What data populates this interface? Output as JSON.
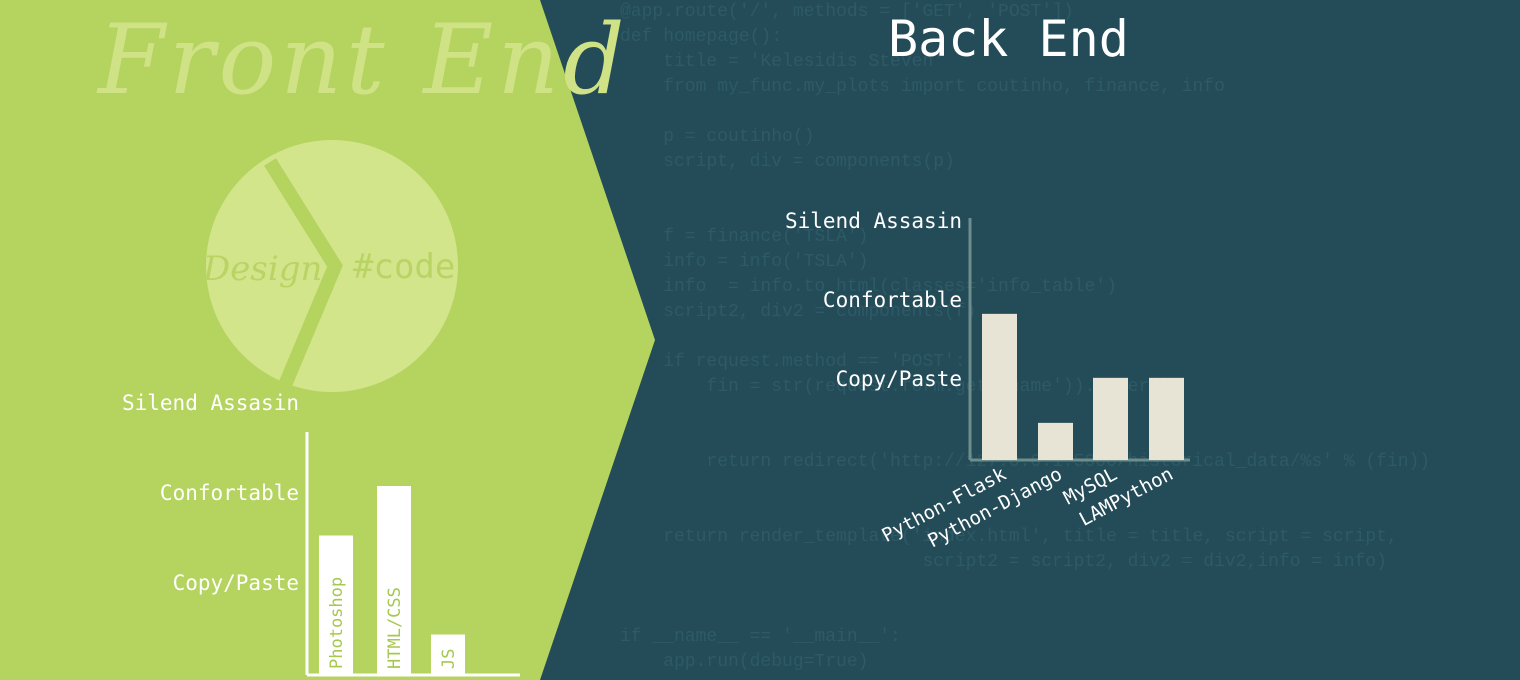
{
  "front_title": "Front End",
  "back_title": "Back End",
  "circle": {
    "left_label": "Design",
    "right_label": "#code"
  },
  "code_lines": [
    "@app.route('/', methods = ['GET', 'POST'])",
    "def homepage():",
    "    title = 'Kelesidis Steven'",
    "    from my_func.my_plots import coutinho, finance, info",
    "",
    "    p = coutinho()",
    "    script, div = components(p)",
    "",
    "",
    "    f = finance('TSLA')",
    "    info = info('TSLA')",
    "    info  = info.to_html(classes='info_table')",
    "    script2, div2 = components(f)",
    "",
    "    if request.method == 'POST':",
    "        fin = str(request.form.get('name')).upper()",
    "",
    "",
    "        return redirect('http://127.0.0.1:5000/historical_data/%s' % (fin))",
    "",
    "",
    "    return render_template('index.html', title = title, script = script,",
    "                            script2 = script2, div2 = div2,info = info)",
    "",
    "",
    "if __name__ == '__main__':",
    "    app.run(debug=True)"
  ],
  "colors": {
    "front_bg": "#b5d35f",
    "back_bg": "#244b58",
    "front_bar": "#ffffff",
    "front_bar_text": "#a6c84f",
    "back_bar": "#e7e4d6",
    "circle": "#d4e78c",
    "circle_text": "#b9d465",
    "axis_back": "#6e8e8c"
  },
  "chart_data": [
    {
      "type": "bar",
      "name": "front_end",
      "categories": [
        "Photoshop",
        "HTML/CSS",
        "JS"
      ],
      "values": [
        1.55,
        2.1,
        0.45
      ],
      "ytick_labels": [
        "Copy/Paste",
        "Confortable",
        "Silend Assasin"
      ],
      "ytick_values": [
        1,
        2,
        3
      ],
      "ylim": [
        0,
        3.1
      ],
      "xlabel": "",
      "ylabel": "",
      "title": ""
    },
    {
      "type": "bar",
      "name": "back_end",
      "categories": [
        "Python-Flask",
        "Python-Django",
        "MySQL",
        "LAMPython"
      ],
      "values": [
        1.85,
        0.47,
        1.04,
        1.04
      ],
      "ytick_labels": [
        "Copy/Paste",
        "Confortable",
        "Silend Assasin"
      ],
      "ytick_values": [
        1,
        2,
        3
      ],
      "ylim": [
        0,
        3.1
      ],
      "xlabel": "",
      "ylabel": "",
      "title": ""
    }
  ]
}
